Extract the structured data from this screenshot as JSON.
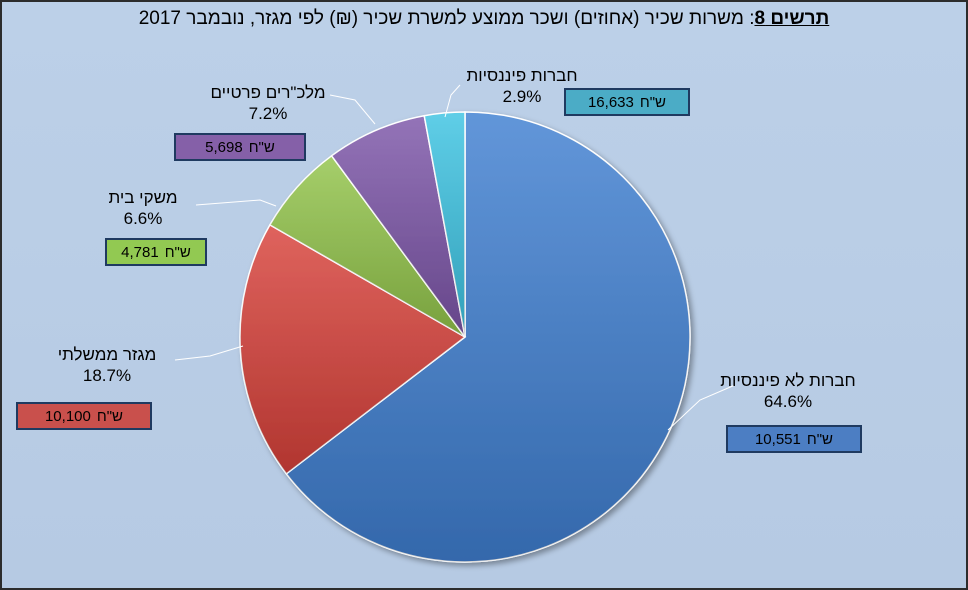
{
  "title": {
    "bold": "תרשים 8",
    "rest": ": משרות שכיר (אחוזים) ושכר ממוצע למשרת שכיר (₪) לפי מגזר, נובמבר  2017"
  },
  "currency": "ש\"ח",
  "chart_data": {
    "type": "pie",
    "slices": [
      {
        "name": "חברות לא פיננסיות",
        "percent_label": "64.6%",
        "value": 64.6,
        "avg_wage": "10,551",
        "color": "#3f7fd1"
      },
      {
        "name": "מגזר ממשלתי",
        "percent_label": "18.7%",
        "value": 18.7,
        "avg_wage": "10,100",
        "color": "#d8413a"
      },
      {
        "name": "משקי בית",
        "percent_label": "6.6%",
        "value": 6.6,
        "avg_wage": "4,781",
        "color": "#92c44a"
      },
      {
        "name": "מלכ\"רים פרטיים",
        "percent_label": "7.2%",
        "value": 7.2,
        "avg_wage": "5,698",
        "color": "#7c55a8"
      },
      {
        "name": "חברות פיננסיות",
        "percent_label": "2.9%",
        "value": 2.9,
        "avg_wage": "16,633",
        "color": "#3cc3e2"
      }
    ],
    "box_colors": [
      "#4c7ec3",
      "#c9504c",
      "#92c952",
      "#8560a8",
      "#4bacc6"
    ]
  }
}
